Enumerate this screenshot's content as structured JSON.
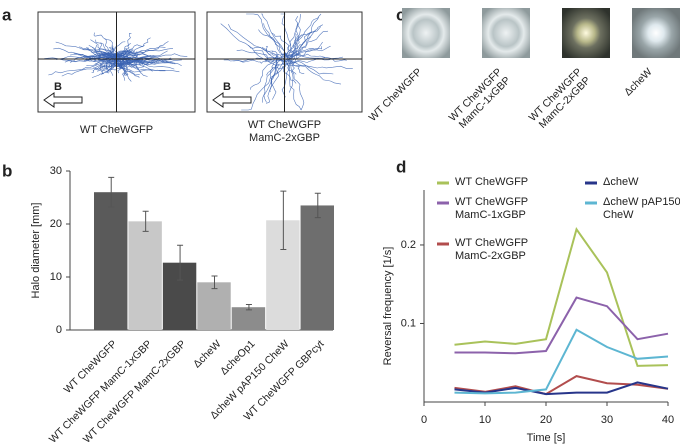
{
  "panel_labels": [
    "a",
    "b",
    "c",
    "d"
  ],
  "panel_a": {
    "images": [
      {
        "label": "WT CheWGFP",
        "arrow_label": "B"
      },
      {
        "label": "WT CheWGFP MamC-2xGBP",
        "arrow_label": "B"
      }
    ]
  },
  "panel_c": {
    "images": [
      {
        "label": "WT CheWGFP"
      },
      {
        "label": "WT CheWGFP MamC-1xGBP"
      },
      {
        "label": "WT CheWGFP MamC-2xGBP"
      },
      {
        "label": "ΔcheW"
      }
    ]
  },
  "chart_data": [
    {
      "type": "bar",
      "y_label": "Halo diameter [mm]",
      "categories": [
        "WT CheWGFP",
        "WT CheWGFP MamC-1xGBP",
        "WT CheWGFP MamC-2xGBP",
        "ΔcheW",
        "ΔcheOp1",
        "ΔcheW pAP150 CheW",
        "WT CheWGFP GBPcyt"
      ],
      "values": [
        26,
        20.5,
        12.7,
        9,
        4.3,
        20.7,
        23.5
      ],
      "errors": [
        2.8,
        1.9,
        3.3,
        1.2,
        0.5,
        5.5,
        2.3
      ],
      "colors": [
        "#5a5a5a",
        "#c8c8c8",
        "#4a4a4a",
        "#b0b0b0",
        "#8c8c8c",
        "#dcdcdc",
        "#6e6e6e"
      ],
      "ylim": [
        0,
        30
      ],
      "yticks": [
        0,
        10,
        20,
        30
      ]
    },
    {
      "type": "line",
      "x_label": "Time [s]",
      "y_label": "Reversal frequency [1/s]",
      "x": [
        5,
        10,
        15,
        20,
        25,
        30,
        35,
        40
      ],
      "series": [
        {
          "name": "WT CheWGFP",
          "color": "#a9c25a",
          "values": [
            0.073,
            0.077,
            0.074,
            0.08,
            0.22,
            0.165,
            0.046,
            0.047
          ]
        },
        {
          "name": "WT CheWGFP MamC-1xGBP",
          "color": "#8c62ab",
          "values": [
            0.063,
            0.063,
            0.062,
            0.065,
            0.133,
            0.122,
            0.08,
            0.087
          ]
        },
        {
          "name": "WT CheWGFP MamC-2xGBP",
          "color": "#b24d4d",
          "values": [
            0.018,
            0.013,
            0.02,
            0.01,
            0.033,
            0.024,
            0.022,
            0.017
          ]
        },
        {
          "name": "ΔcheW",
          "color": "#27358a",
          "values": [
            0.016,
            0.012,
            0.018,
            0.01,
            0.012,
            0.012,
            0.025,
            0.017
          ]
        },
        {
          "name": "ΔcheW pAP150 CheW",
          "color": "#5db6d2",
          "values": [
            0.012,
            0.011,
            0.012,
            0.016,
            0.092,
            0.07,
            0.055,
            0.058
          ]
        }
      ],
      "xlim": [
        0,
        40
      ],
      "xticks": [
        0,
        10,
        20,
        30,
        40
      ],
      "ylim": [
        0,
        0.27
      ],
      "yticks": [
        0.1,
        0.2
      ]
    }
  ]
}
